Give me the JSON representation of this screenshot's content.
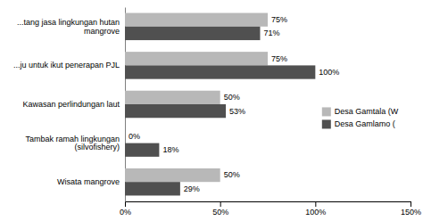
{
  "chart_data": {
    "type": "bar",
    "orientation": "horizontal",
    "categories": [
      "...tang jasa lingkungan hutan\n      mangrove",
      "...ju untuk ikut penerapan PJL",
      "Kawasan perlindungan laut",
      "Tambak ramah lingkungan\n    (silvofishery)",
      "Wisata mangrove"
    ],
    "series": [
      {
        "name": "Desa Gamtala (W",
        "color": "#b8b8b8",
        "values": [
          75,
          75,
          50,
          0,
          50
        ],
        "value_labels": [
          "75%",
          "75%",
          "50%",
          "0%",
          "50%"
        ]
      },
      {
        "name": "Desa Gamlamo (",
        "color": "#505050",
        "values": [
          71,
          100,
          53,
          18,
          29
        ],
        "value_labels": [
          "71%",
          "100%",
          "53%",
          "18%",
          "29%"
        ]
      }
    ],
    "xlim": [
      0,
      150
    ],
    "xticks": [
      {
        "value": 0,
        "label": "0%"
      },
      {
        "value": 50,
        "label": "50%"
      },
      {
        "value": 100,
        "label": "100%"
      },
      {
        "value": 150,
        "label": "150%"
      }
    ],
    "data_labels": true,
    "legend": "right"
  }
}
